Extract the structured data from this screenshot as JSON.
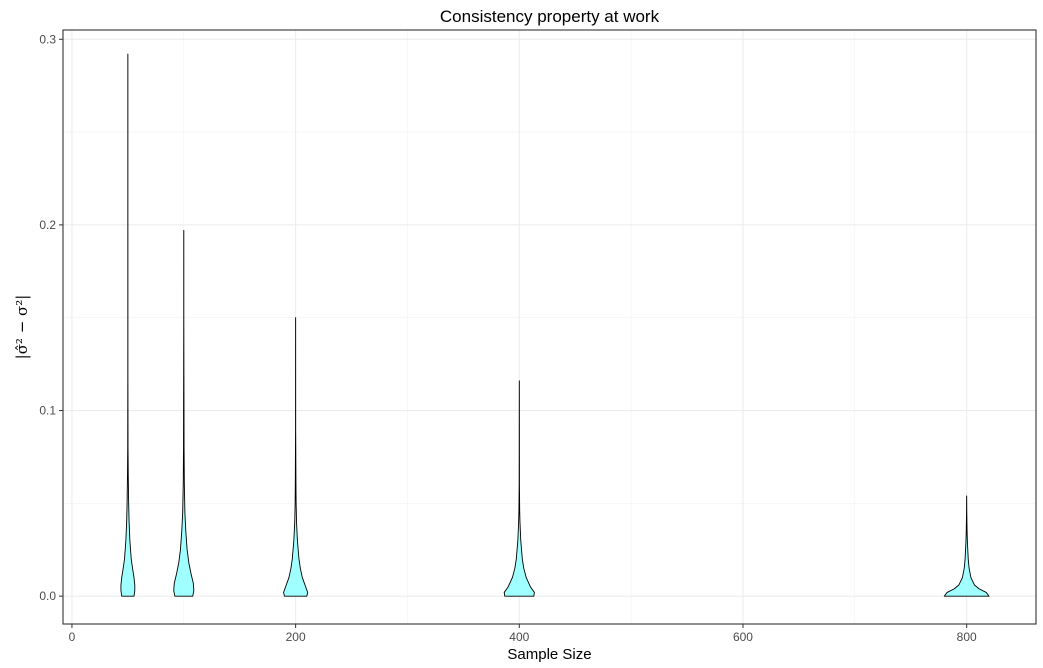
{
  "chart_data": {
    "type": "violin",
    "title": "Consistency property at work",
    "xlabel": "Sample Size",
    "ylabel": "|σ̂² − σ²|",
    "xlim": [
      -8,
      862
    ],
    "ylim": [
      -0.015,
      0.305
    ],
    "x_ticks": [
      0,
      200,
      400,
      600,
      800
    ],
    "y_ticks": [
      0.0,
      0.1,
      0.2,
      0.3
    ],
    "y_tick_labels": [
      "0.0",
      "0.1",
      "0.2",
      "0.3"
    ],
    "grid": true,
    "fill_color": "#a0ffff",
    "outline_color": "#000000",
    "series": [
      {
        "x": 50,
        "max": 0.292,
        "profile": [
          [
            0,
            0.55
          ],
          [
            0.003,
            0.62
          ],
          [
            0.006,
            0.62
          ],
          [
            0.01,
            0.55
          ],
          [
            0.015,
            0.42
          ],
          [
            0.02,
            0.3
          ],
          [
            0.03,
            0.18
          ],
          [
            0.04,
            0.11
          ],
          [
            0.05,
            0.07
          ],
          [
            0.065,
            0.035
          ],
          [
            0.08,
            0.015
          ],
          [
            0.097,
            0.01
          ],
          [
            0.12,
            0.004
          ],
          [
            0.2,
            0.003
          ],
          [
            0.292,
            0.002
          ]
        ]
      },
      {
        "x": 100,
        "max": 0.197,
        "profile": [
          [
            0,
            0.8
          ],
          [
            0.003,
            0.9
          ],
          [
            0.007,
            0.85
          ],
          [
            0.012,
            0.65
          ],
          [
            0.018,
            0.45
          ],
          [
            0.025,
            0.3
          ],
          [
            0.035,
            0.18
          ],
          [
            0.045,
            0.1
          ],
          [
            0.06,
            0.05
          ],
          [
            0.08,
            0.025
          ],
          [
            0.1,
            0.02
          ],
          [
            0.121,
            0.012
          ],
          [
            0.15,
            0.004
          ],
          [
            0.197,
            0.002
          ]
        ]
      },
      {
        "x": 200,
        "max": 0.15,
        "profile": [
          [
            0,
            1.0
          ],
          [
            0.002,
            1.08
          ],
          [
            0.005,
            0.9
          ],
          [
            0.01,
            0.6
          ],
          [
            0.015,
            0.42
          ],
          [
            0.02,
            0.3
          ],
          [
            0.03,
            0.16
          ],
          [
            0.04,
            0.08
          ],
          [
            0.05,
            0.045
          ],
          [
            0.06,
            0.03
          ],
          [
            0.072,
            0.02
          ],
          [
            0.09,
            0.006
          ],
          [
            0.15,
            0.002
          ]
        ]
      },
      {
        "x": 400,
        "max": 0.116,
        "profile": [
          [
            0,
            1.3
          ],
          [
            0.002,
            1.35
          ],
          [
            0.005,
            1.0
          ],
          [
            0.01,
            0.62
          ],
          [
            0.015,
            0.4
          ],
          [
            0.02,
            0.27
          ],
          [
            0.03,
            0.13
          ],
          [
            0.04,
            0.06
          ],
          [
            0.046,
            0.035
          ],
          [
            0.06,
            0.012
          ],
          [
            0.116,
            0.002
          ]
        ]
      },
      {
        "x": 800,
        "max": 0.054,
        "profile": [
          [
            0,
            2.0
          ],
          [
            0.002,
            1.75
          ],
          [
            0.004,
            1.1
          ],
          [
            0.006,
            0.7
          ],
          [
            0.01,
            0.38
          ],
          [
            0.015,
            0.22
          ],
          [
            0.02,
            0.14
          ],
          [
            0.025,
            0.1
          ],
          [
            0.03,
            0.06
          ],
          [
            0.036,
            0.035
          ],
          [
            0.045,
            0.012
          ],
          [
            0.054,
            0.002
          ]
        ]
      }
    ]
  }
}
